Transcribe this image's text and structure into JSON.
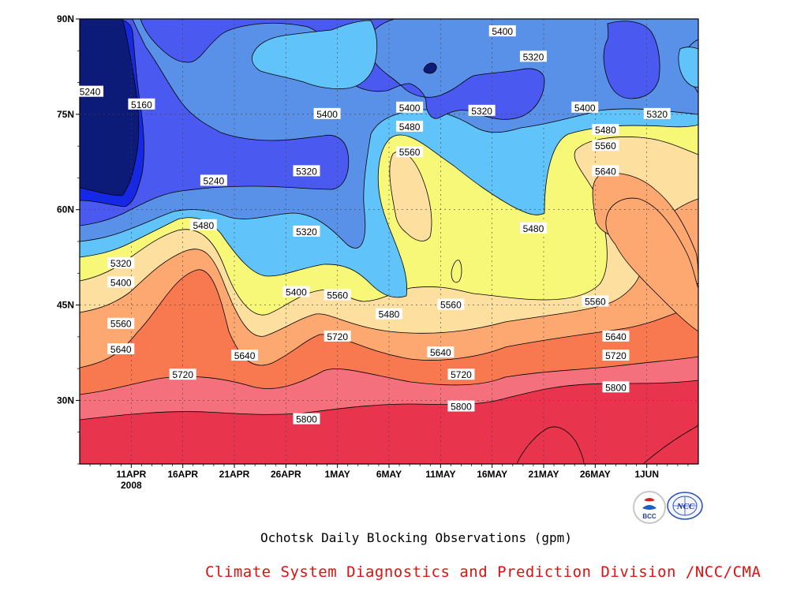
{
  "chart_data": {
    "type": "heatmap",
    "variant": "filled-contour",
    "title": "Ochotsk Daily Blocking Observations (gpm)",
    "x_axis": {
      "ticks": [
        "11APR",
        "16APR",
        "21APR",
        "26APR",
        "1MAY",
        "6MAY",
        "11MAY",
        "16MAY",
        "21MAY",
        "26MAY",
        "1JUN"
      ],
      "year_label": "2008",
      "start": "2008-04-06",
      "end": "2008-06-05"
    },
    "y_axis": {
      "ticks": [
        "30N",
        "45N",
        "60N",
        "75N",
        "90N"
      ],
      "range": [
        20,
        90
      ]
    },
    "levels": [
      5160,
      5240,
      5320,
      5400,
      5480,
      5560,
      5640,
      5720,
      5800,
      5880
    ],
    "band_colors": [
      "#0c1a78",
      "#1428e6",
      "#4a5af0",
      "#5a91e8",
      "#60c3fa",
      "#f8f878",
      "#fde0a0",
      "#fca870",
      "#f87850",
      "#f4707c",
      "#e8344c"
    ],
    "contour_labels": [
      {
        "date": "2008-04-07",
        "lat": 78.5,
        "value": "5240"
      },
      {
        "date": "2008-04-12",
        "lat": 76.5,
        "value": "5160"
      },
      {
        "date": "2008-04-19",
        "lat": 64.5,
        "value": "5240"
      },
      {
        "date": "2008-04-28",
        "lat": 66,
        "value": "5320"
      },
      {
        "date": "2008-04-30",
        "lat": 75,
        "value": "5400"
      },
      {
        "date": "2008-04-28",
        "lat": 56.5,
        "value": "5320"
      },
      {
        "date": "2008-04-18",
        "lat": 57.5,
        "value": "5480"
      },
      {
        "date": "2008-04-10",
        "lat": 51.5,
        "value": "5320"
      },
      {
        "date": "2008-04-10",
        "lat": 48.5,
        "value": "5400"
      },
      {
        "date": "2008-04-27",
        "lat": 47,
        "value": "5400"
      },
      {
        "date": "2008-05-01",
        "lat": 46.5,
        "value": "5560"
      },
      {
        "date": "2008-05-06",
        "lat": 43.5,
        "value": "5480"
      },
      {
        "date": "2008-05-08",
        "lat": 76,
        "value": "5400"
      },
      {
        "date": "2008-05-08",
        "lat": 73,
        "value": "5480"
      },
      {
        "date": "2008-05-08",
        "lat": 69,
        "value": "5560"
      },
      {
        "date": "2008-05-17",
        "lat": 88,
        "value": "5400"
      },
      {
        "date": "2008-05-20",
        "lat": 84,
        "value": "5320"
      },
      {
        "date": "2008-05-15",
        "lat": 75.5,
        "value": "5320"
      },
      {
        "date": "2008-05-25",
        "lat": 76,
        "value": "5400"
      },
      {
        "date": "2008-06-01",
        "lat": 75,
        "value": "5320"
      },
      {
        "date": "2008-05-27",
        "lat": 72.5,
        "value": "5480"
      },
      {
        "date": "2008-05-27",
        "lat": 70,
        "value": "5560"
      },
      {
        "date": "2008-05-27",
        "lat": 66,
        "value": "5640"
      },
      {
        "date": "2008-05-20",
        "lat": 57,
        "value": "5480"
      },
      {
        "date": "2008-05-12",
        "lat": 45,
        "value": "5560"
      },
      {
        "date": "2008-05-26",
        "lat": 45.5,
        "value": "5560"
      },
      {
        "date": "2008-04-10",
        "lat": 42,
        "value": "5560"
      },
      {
        "date": "2008-04-10",
        "lat": 38,
        "value": "5640"
      },
      {
        "date": "2008-04-22",
        "lat": 37,
        "value": "5640"
      },
      {
        "date": "2008-05-01",
        "lat": 40,
        "value": "5720"
      },
      {
        "date": "2008-05-11",
        "lat": 37.5,
        "value": "5640"
      },
      {
        "date": "2008-05-28",
        "lat": 40,
        "value": "5640"
      },
      {
        "date": "2008-05-28",
        "lat": 37,
        "value": "5720"
      },
      {
        "date": "2008-04-16",
        "lat": 34,
        "value": "5720"
      },
      {
        "date": "2008-05-13",
        "lat": 34,
        "value": "5720"
      },
      {
        "date": "2008-05-28",
        "lat": 32,
        "value": "5800"
      },
      {
        "date": "2008-04-28",
        "lat": 27,
        "value": "5800"
      },
      {
        "date": "2008-05-13",
        "lat": 29,
        "value": "5800"
      }
    ]
  },
  "credit": "Climate System Diagnostics and Prediction Division /NCC/CMA",
  "logos": {
    "bcc": {
      "text": "BCC",
      "icon": "bcc-logo"
    },
    "ncc": {
      "text": "NCC",
      "icon": "ncc-logo"
    }
  }
}
